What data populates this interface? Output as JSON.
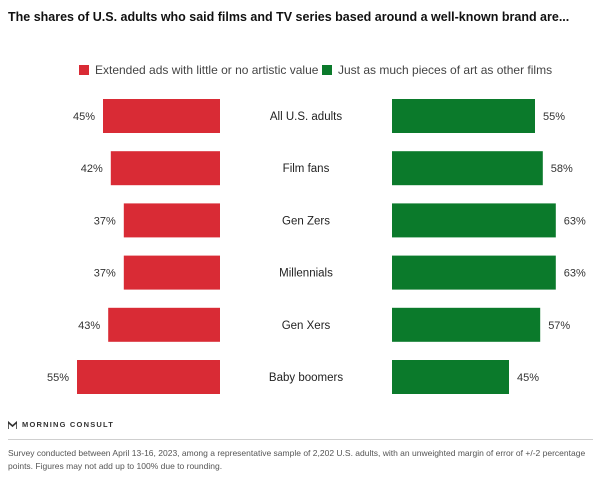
{
  "title": "The shares of U.S. adults who said films and TV series based around a well-known brand are...",
  "legend": [
    {
      "label": "Extended ads with little or no artistic value",
      "color": "#d92b35"
    },
    {
      "label": "Just as much pieces of art as other films",
      "color": "#0b7a2b"
    }
  ],
  "chart_data": {
    "type": "bar",
    "orientation": "horizontal",
    "layout": "diverging",
    "categories": [
      "All U.S. adults",
      "Film fans",
      "Gen Zers",
      "Millennials",
      "Gen Xers",
      "Baby boomers"
    ],
    "series": [
      {
        "name": "Extended ads with little or no artistic value",
        "color": "#d92b35",
        "values": [
          45,
          42,
          37,
          37,
          43,
          55
        ]
      },
      {
        "name": "Just as much pieces of art as other films",
        "color": "#0b7a2b",
        "values": [
          55,
          58,
          63,
          63,
          57,
          45
        ]
      }
    ],
    "value_suffix": "%",
    "legend_position": "top",
    "grid": false
  },
  "brand": "MORNING CONSULT",
  "note": "Survey conducted between April 13-16, 2023, among a representative sample of 2,202 U.S. adults, with an unweighted margin of error of +/-2 percentage points. Figures may not add up to 100% due to rounding."
}
